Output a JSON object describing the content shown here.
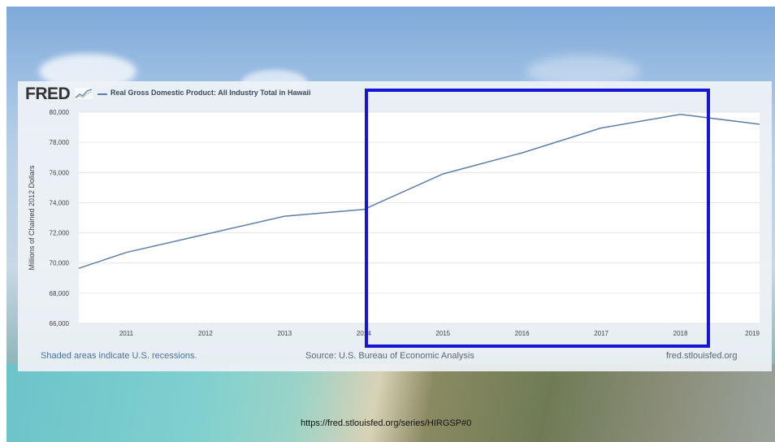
{
  "fred_logo": "FRED",
  "legend_label": "Real Gross Domestic Product: All Industry Total in Hawaii",
  "footer": {
    "recessions": "Shaded areas indicate U.S. recessions.",
    "source": "Source: U.S. Bureau of Economic Analysis",
    "site": "fred.stlouisfed.org"
  },
  "url": "https://fred.stlouisfed.org/series/HIRGSP#0",
  "colors": {
    "line": "#5d7fa6",
    "highlight": "#1515d6"
  },
  "chart_data": {
    "type": "line",
    "ylabel": "Millions of Chained 2012 Dollars",
    "ylim": [
      66000,
      80000
    ],
    "xlim": [
      2010.4,
      2019
    ],
    "grid": true,
    "y_ticks": [
      "66,000",
      "68,000",
      "70,000",
      "72,000",
      "74,000",
      "76,000",
      "78,000",
      "80,000"
    ],
    "y_tick_values": [
      66000,
      68000,
      70000,
      72000,
      74000,
      76000,
      78000,
      80000
    ],
    "x_ticks": [
      "2011",
      "2012",
      "2013",
      "2014",
      "2015",
      "2016",
      "2017",
      "2018",
      "2019"
    ],
    "x_tick_values": [
      2011,
      2012,
      2013,
      2014,
      2015,
      2016,
      2017,
      2018,
      2019
    ],
    "series": [
      {
        "name": "Real Gross Domestic Product: All Industry Total in Hawaii",
        "x": [
          2010.4,
          2011,
          2012,
          2013,
          2014,
          2015,
          2016,
          2017,
          2018,
          2019
        ],
        "values": [
          69650,
          70700,
          71900,
          73100,
          73550,
          75900,
          77300,
          78950,
          79850,
          79200
        ]
      }
    ],
    "highlight_range": [
      "2014",
      "2018"
    ]
  }
}
